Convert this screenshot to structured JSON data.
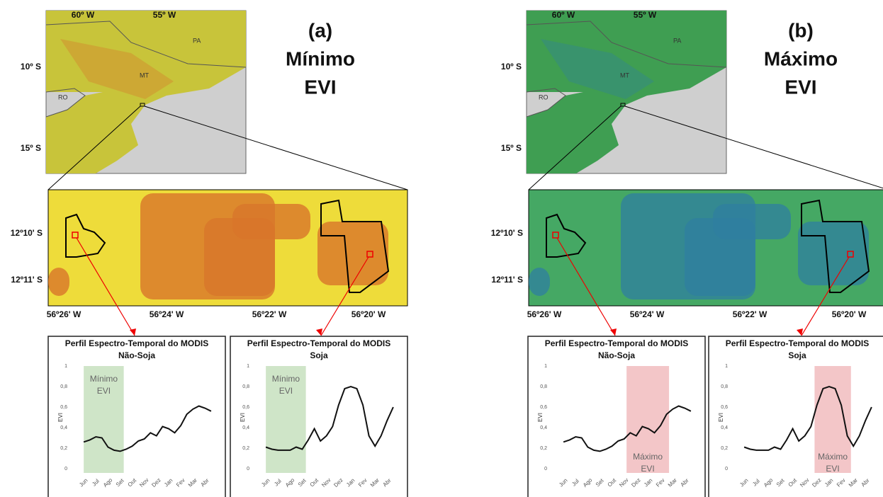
{
  "panels": [
    {
      "label": "(a)",
      "title": [
        "Mínimo",
        "EVI"
      ],
      "map_lon": [
        "60º W",
        "55º W"
      ],
      "map_lat": [
        "10º S",
        "15º S"
      ],
      "states": [
        "PA",
        "MT",
        "RO"
      ],
      "zoom_lat": [
        "12º10' S",
        "12º11' S"
      ],
      "zoom_lon": [
        "56º26' W",
        "56º24' W",
        "56º22' W",
        "56º20' W"
      ]
    },
    {
      "label": "(b)",
      "title": [
        "Máximo",
        "EVI"
      ],
      "map_lon": [
        "60º W",
        "55º W"
      ],
      "map_lat": [
        "10º S",
        "15º S"
      ],
      "states": [
        "PA",
        "MT",
        "RO"
      ],
      "zoom_lat": [
        "12º10' S",
        "12º11' S"
      ],
      "zoom_lon": [
        "56º26' W",
        "56º24' W",
        "56º22' W",
        "56º20' W"
      ]
    }
  ],
  "chart_data": [
    {
      "type": "line",
      "title": "Perfil Espectro-Temporal do MODIS",
      "subtitle": "Não-Soja",
      "ylabel": "EVI",
      "color": "#111111",
      "x": [
        0,
        0.5,
        1,
        1.5,
        2,
        2.5,
        3,
        3.5,
        4,
        4.5,
        5,
        5.5,
        6,
        6.5,
        7,
        7.5,
        8,
        8.5,
        9,
        9.5,
        10,
        10.5
      ],
      "values": [
        0.26,
        0.28,
        0.31,
        0.3,
        0.21,
        0.18,
        0.17,
        0.19,
        0.22,
        0.27,
        0.29,
        0.35,
        0.32,
        0.41,
        0.39,
        0.35,
        0.42,
        0.53,
        0.58,
        0.61,
        0.59,
        0.56
      ],
      "xlim": [
        -0.3,
        10.8
      ],
      "xticks": [
        {
          "value": 0,
          "label": "Jun"
        },
        {
          "value": 1,
          "label": "Jul"
        },
        {
          "value": 2,
          "label": "Ago"
        },
        {
          "value": 3,
          "label": "Set"
        },
        {
          "value": 4,
          "label": "Out"
        },
        {
          "value": 5,
          "label": "Nov"
        },
        {
          "value": 6,
          "label": "Dez"
        },
        {
          "value": 7,
          "label": "Jan"
        },
        {
          "value": 8,
          "label": "Fev"
        },
        {
          "value": 9,
          "label": "Mar"
        },
        {
          "value": 10,
          "label": "Abr"
        }
      ],
      "ylim": [
        0,
        1
      ],
      "yticks": [
        0,
        {
          "value": 0.2,
          "label": "0,2"
        },
        {
          "value": 0.4,
          "label": "0,4"
        },
        {
          "value": 0.6,
          "label": "0,6"
        },
        {
          "value": 0.8,
          "label": "0,8"
        },
        1
      ],
      "highlight": {
        "from": 0,
        "to": 3.3,
        "color": "#cfe5c8",
        "label": [
          "Mínimo",
          "EVI"
        ]
      }
    },
    {
      "type": "line",
      "title": "Perfil Espectro-Temporal do MODIS",
      "subtitle": "Soja",
      "ylabel": "EVI",
      "color": "#111111",
      "x": [
        0,
        0.5,
        1,
        1.5,
        2,
        2.5,
        3,
        3.5,
        4,
        4.5,
        5,
        5.5,
        6,
        6.5,
        7,
        7.5,
        8,
        8.5,
        9,
        9.5,
        10,
        10.5
      ],
      "values": [
        0.21,
        0.19,
        0.18,
        0.18,
        0.18,
        0.21,
        0.19,
        0.28,
        0.39,
        0.27,
        0.32,
        0.41,
        0.62,
        0.78,
        0.8,
        0.78,
        0.62,
        0.32,
        0.22,
        0.32,
        0.47,
        0.6
      ],
      "xlim": [
        -0.3,
        10.8
      ],
      "xticks": [
        {
          "value": 0,
          "label": "Jun"
        },
        {
          "value": 1,
          "label": "Jul"
        },
        {
          "value": 2,
          "label": "Ago"
        },
        {
          "value": 3,
          "label": "Set"
        },
        {
          "value": 4,
          "label": "Out"
        },
        {
          "value": 5,
          "label": "Nov"
        },
        {
          "value": 6,
          "label": "Dez"
        },
        {
          "value": 7,
          "label": "Jan"
        },
        {
          "value": 8,
          "label": "Fev"
        },
        {
          "value": 9,
          "label": "Mar"
        },
        {
          "value": 10,
          "label": "Abr"
        }
      ],
      "ylim": [
        0,
        1
      ],
      "yticks": [
        0,
        {
          "value": 0.2,
          "label": "0,2"
        },
        {
          "value": 0.4,
          "label": "0,4"
        },
        {
          "value": 0.6,
          "label": "0,6"
        },
        {
          "value": 0.8,
          "label": "0,8"
        },
        1
      ],
      "highlight": {
        "from": 0,
        "to": 3.3,
        "color": "#cfe5c8",
        "label": [
          "Mínimo",
          "EVI"
        ]
      }
    },
    {
      "type": "line",
      "title": "Perfil Espectro-Temporal do MODIS",
      "subtitle": "Não-Soja",
      "ylabel": "EVI",
      "color": "#111111",
      "x": [
        0,
        0.5,
        1,
        1.5,
        2,
        2.5,
        3,
        3.5,
        4,
        4.5,
        5,
        5.5,
        6,
        6.5,
        7,
        7.5,
        8,
        8.5,
        9,
        9.5,
        10,
        10.5
      ],
      "values": [
        0.26,
        0.28,
        0.31,
        0.3,
        0.21,
        0.18,
        0.17,
        0.19,
        0.22,
        0.27,
        0.29,
        0.35,
        0.32,
        0.41,
        0.39,
        0.35,
        0.42,
        0.53,
        0.58,
        0.61,
        0.59,
        0.56
      ],
      "xlim": [
        -0.3,
        10.8
      ],
      "xticks": [
        {
          "value": 0,
          "label": "Jun"
        },
        {
          "value": 1,
          "label": "Jul"
        },
        {
          "value": 2,
          "label": "Ago"
        },
        {
          "value": 3,
          "label": "Set"
        },
        {
          "value": 4,
          "label": "Out"
        },
        {
          "value": 5,
          "label": "Nov"
        },
        {
          "value": 6,
          "label": "Dez"
        },
        {
          "value": 7,
          "label": "Jan"
        },
        {
          "value": 8,
          "label": "Fev"
        },
        {
          "value": 9,
          "label": "Mar"
        },
        {
          "value": 10,
          "label": "Abr"
        }
      ],
      "ylim": [
        0,
        1
      ],
      "yticks": [
        0,
        {
          "value": 0.2,
          "label": "0,2"
        },
        {
          "value": 0.4,
          "label": "0,4"
        },
        {
          "value": 0.6,
          "label": "0,6"
        },
        {
          "value": 0.8,
          "label": "0,8"
        },
        1
      ],
      "highlight": {
        "from": 5.2,
        "to": 8.7,
        "color": "#f3c6c8",
        "label": [
          "Máximo",
          "EVI"
        ]
      }
    },
    {
      "type": "line",
      "title": "Perfil Espectro-Temporal do MODIS",
      "subtitle": "Soja",
      "ylabel": "EVI",
      "color": "#111111",
      "x": [
        0,
        0.5,
        1,
        1.5,
        2,
        2.5,
        3,
        3.5,
        4,
        4.5,
        5,
        5.5,
        6,
        6.5,
        7,
        7.5,
        8,
        8.5,
        9,
        9.5,
        10,
        10.5
      ],
      "values": [
        0.21,
        0.19,
        0.18,
        0.18,
        0.18,
        0.21,
        0.19,
        0.28,
        0.39,
        0.27,
        0.32,
        0.41,
        0.62,
        0.78,
        0.8,
        0.78,
        0.62,
        0.32,
        0.22,
        0.32,
        0.47,
        0.6
      ],
      "xlim": [
        -0.3,
        10.8
      ],
      "xticks": [
        {
          "value": 0,
          "label": "Jun"
        },
        {
          "value": 1,
          "label": "Jul"
        },
        {
          "value": 2,
          "label": "Ago"
        },
        {
          "value": 3,
          "label": "Set"
        },
        {
          "value": 4,
          "label": "Out"
        },
        {
          "value": 5,
          "label": "Nov"
        },
        {
          "value": 6,
          "label": "Dez"
        },
        {
          "value": 7,
          "label": "Jan"
        },
        {
          "value": 8,
          "label": "Fev"
        },
        {
          "value": 9,
          "label": "Mar"
        },
        {
          "value": 10,
          "label": "Abr"
        }
      ],
      "ylim": [
        0,
        1
      ],
      "yticks": [
        0,
        {
          "value": 0.2,
          "label": "0,2"
        },
        {
          "value": 0.4,
          "label": "0,4"
        },
        {
          "value": 0.6,
          "label": "0,6"
        },
        {
          "value": 0.8,
          "label": "0,8"
        },
        1
      ],
      "highlight": {
        "from": 5.8,
        "to": 8.8,
        "color": "#f3c6c8",
        "label": [
          "Máximo",
          "EVI"
        ]
      }
    }
  ]
}
